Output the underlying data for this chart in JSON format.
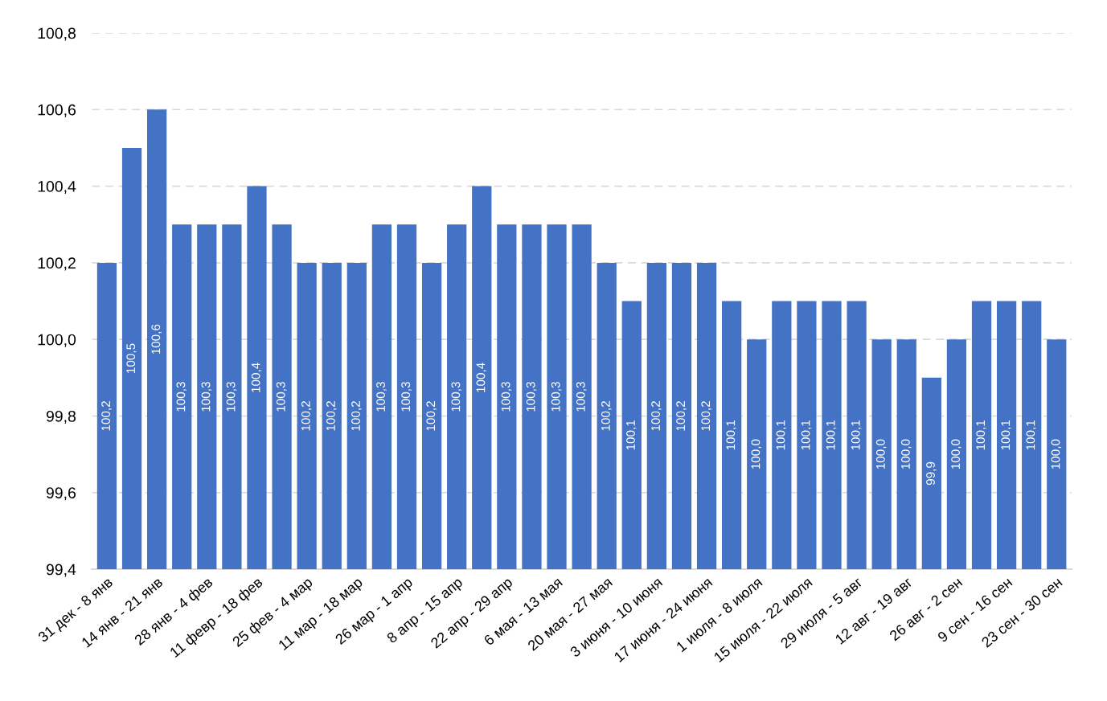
{
  "chart_data": {
    "type": "bar",
    "categories": [
      "31 дек - 8 янв",
      null,
      "14 янв - 21 янв",
      null,
      "28 янв - 4 фев",
      null,
      "11 февр - 18 фев",
      null,
      "25 фев - 4 мар",
      null,
      "11 мар - 18 мар",
      null,
      "26 мар - 1 апр",
      null,
      "8 апр - 15 апр",
      null,
      "22 апр - 29 апр",
      null,
      "6 мая - 13 мая",
      null,
      "20 мая - 27 мая",
      null,
      "3 июня - 10 июня",
      null,
      "17 июня - 24 июня",
      null,
      "1 июля - 8 июля",
      null,
      "15 июля - 22 июля",
      null,
      "29 июля - 5 авг",
      null,
      "12 авг - 19 авг",
      null,
      "26 авг - 2 сен",
      null,
      "9 сен - 16 сен",
      null,
      "23 сен - 30 сен"
    ],
    "values": [
      100.2,
      100.5,
      100.6,
      100.3,
      100.3,
      100.3,
      100.4,
      100.3,
      100.2,
      100.2,
      100.2,
      100.3,
      100.3,
      100.2,
      100.3,
      100.4,
      100.3,
      100.3,
      100.3,
      100.3,
      100.2,
      100.1,
      100.2,
      100.2,
      100.2,
      100.1,
      100.0,
      100.1,
      100.1,
      100.1,
      100.1,
      100.0,
      100.0,
      99.9,
      100.0,
      100.1,
      100.1,
      100.1,
      100.0
    ],
    "value_labels": [
      "100,2",
      "100,5",
      "100,6",
      "100,3",
      "100,3",
      "100,3",
      "100,4",
      "100,3",
      "100,2",
      "100,2",
      "100,2",
      "100,3",
      "100,3",
      "100,2",
      "100,3",
      "100,4",
      "100,3",
      "100,3",
      "100,3",
      "100,3",
      "100,2",
      "100,1",
      "100,2",
      "100,2",
      "100,2",
      "100,1",
      "100,0",
      "100,1",
      "100,1",
      "100,1",
      "100,1",
      "100,0",
      "100,0",
      "99,9",
      "100,0",
      "100,1",
      "100,1",
      "100,1",
      "100,0"
    ],
    "color": "#4472c4",
    "ylim": [
      99.4,
      100.8
    ],
    "yticks": [
      {
        "value": 99.4,
        "label": "99,4"
      },
      {
        "value": 99.6,
        "label": "99,6"
      },
      {
        "value": 99.8,
        "label": "99,8"
      },
      {
        "value": 100.0,
        "label": "100,0"
      },
      {
        "value": 100.2,
        "label": "100,2"
      },
      {
        "value": 100.4,
        "label": "100,4"
      },
      {
        "value": 100.6,
        "label": "100,6"
      },
      {
        "value": 100.8,
        "label": "100,8"
      }
    ],
    "grid": "y"
  }
}
